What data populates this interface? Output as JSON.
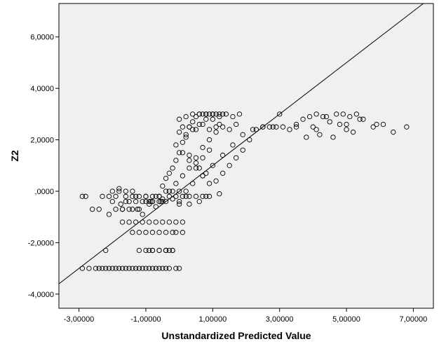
{
  "chart_data": {
    "type": "scatter",
    "title": "",
    "xlabel": "Unstandardized Predicted Value",
    "ylabel": "Z2",
    "xlim": [
      -3.6,
      7.6
    ],
    "ylim": [
      -4.55,
      7.3
    ],
    "x_ticks": [
      -3,
      -1,
      1,
      3,
      5,
      7
    ],
    "x_tick_labels": [
      "-3,00000",
      "-1,00000",
      "1,00000",
      "3,00000",
      "5,00000",
      "7,00000"
    ],
    "y_ticks": [
      -4,
      -2,
      0,
      2,
      4,
      6
    ],
    "y_tick_labels": [
      "-4,0000",
      "-2,0000",
      ",0000",
      "2,0000",
      "4,0000",
      "6,0000"
    ],
    "grid": false,
    "reference_line": {
      "type": "identity",
      "color": "#000000"
    },
    "colors": {
      "plot_background": "#f0f0f0",
      "marker_edge": "#000000",
      "axis": "#000000"
    },
    "series": [
      {
        "marker": "open-circle",
        "x": [
          -2.9,
          -2.8,
          -2.6,
          -2.3,
          -2.1,
          -2.0,
          -1.9,
          -1.8,
          -1.75,
          -1.7,
          -1.6,
          -1.5,
          -1.4,
          -1.3,
          -1.25,
          -1.1,
          -1.0,
          -0.9,
          -0.85,
          -0.8,
          -0.7,
          -0.6,
          -0.55,
          -0.5,
          -2.4,
          -2.1,
          -1.9,
          -1.7,
          -1.6,
          -1.5,
          -1.4,
          -1.3,
          -1.2,
          -1.1,
          -1.0,
          -0.9,
          -0.8,
          -0.7,
          -0.6,
          -0.5,
          -0.4,
          -0.3,
          -0.2,
          -0.1,
          0.0,
          0.1,
          0.2,
          -2.0,
          -1.8,
          -1.6,
          -1.4,
          -1.2,
          -1.0,
          -0.8,
          -0.6,
          -0.4,
          -0.2,
          0.0,
          0.2,
          -1.7,
          -1.5,
          -1.3,
          -1.1,
          -0.9,
          -0.7,
          -0.5,
          -0.3,
          -0.1,
          0.1,
          0.3,
          0.5,
          0.7,
          0.8,
          -1.4,
          -1.2,
          -1.0,
          -0.8,
          -0.6,
          -0.4,
          -0.2,
          -0.6,
          -0.4,
          -0.2,
          -1.0,
          -0.8,
          -0.6,
          -0.4,
          -0.2,
          -0.1,
          0.1,
          -2.2,
          -1.2,
          -0.9,
          -0.8,
          -0.4,
          -0.3,
          -2.9,
          -2.7,
          -2.5,
          -2.4,
          -2.3,
          -2.2,
          -2.1,
          -2.0,
          -1.9,
          -1.8,
          -1.7,
          -1.6,
          -1.5,
          -1.4,
          -1.3,
          -1.2,
          -1.1,
          -1.0,
          -0.9,
          -0.8,
          -0.7,
          -0.6,
          -0.5,
          -0.4,
          -0.3,
          -0.1,
          0.0,
          -0.5,
          -0.4,
          -0.3,
          -0.2,
          -0.1,
          0.0,
          0.1,
          0.2,
          0.3,
          0.4,
          0.5,
          0.6,
          0.7,
          0.8,
          0.9,
          1.0,
          1.1,
          1.2,
          1.3,
          0.0,
          0.2,
          0.4,
          0.6,
          0.8,
          1.0,
          1.2,
          0.3,
          0.5,
          0.7,
          0.9,
          0.6,
          0.8,
          -0.3,
          -0.1,
          0.1,
          0.3,
          0.5,
          0.7,
          0.9,
          1.1,
          1.3,
          1.5,
          1.7,
          -0.1,
          0.1,
          0.3,
          0.5,
          0.7,
          0.9,
          1.1,
          1.3,
          1.5,
          1.7,
          1.9,
          2.1,
          2.3,
          2.5,
          2.7,
          0.0,
          0.2,
          0.4,
          0.6,
          0.8,
          1.0,
          1.2,
          1.4,
          1.6,
          1.8,
          0.1,
          0.3,
          0.5,
          0.7,
          0.9,
          1.1,
          0.0,
          0.3,
          0.6,
          0.9,
          1.2,
          0.4,
          0.7,
          1.0,
          1.3,
          1.6,
          1.9,
          2.2,
          2.5,
          2.8,
          2.9,
          3.1,
          3.3,
          3.5,
          3.7,
          3.9,
          4.1,
          4.3,
          4.5,
          4.7,
          4.9,
          5.1,
          5.3,
          5.5,
          5.9,
          6.1,
          3.0,
          3.5,
          4.0,
          4.2,
          4.4,
          4.8,
          5.0,
          5.2,
          5.4,
          3.8,
          4.1,
          4.6,
          5.0,
          5.8,
          6.4,
          6.8
        ],
        "y": [
          -0.2,
          -0.2,
          -0.7,
          -0.2,
          -0.2,
          -0.4,
          -0.2,
          0.1,
          -0.5,
          -0.7,
          -0.2,
          -0.4,
          -0.2,
          -0.2,
          -0.7,
          -0.4,
          -0.2,
          -0.5,
          -0.4,
          -0.4,
          -0.2,
          -0.2,
          -0.4,
          -0.3,
          -0.7,
          -0.9,
          -0.7,
          -0.7,
          -0.4,
          -0.7,
          -0.7,
          -0.4,
          -0.7,
          -0.9,
          -0.4,
          -0.4,
          -0.4,
          -0.6,
          -0.4,
          -0.4,
          -0.4,
          -0.2,
          -0.3,
          -0.2,
          -0.4,
          -0.2,
          -0.2,
          0.0,
          0.0,
          0.0,
          0.0,
          -0.2,
          -0.2,
          -0.2,
          -0.2,
          0.0,
          0.0,
          0.0,
          0.0,
          -1.2,
          -1.2,
          -1.2,
          -1.2,
          -1.2,
          -1.2,
          -1.2,
          -1.2,
          -1.2,
          -1.2,
          -0.2,
          -0.2,
          -0.2,
          -0.2,
          -1.6,
          -1.6,
          -1.6,
          -1.6,
          -1.6,
          -1.6,
          -1.6,
          -2.3,
          -2.3,
          -2.3,
          -2.3,
          -2.3,
          -2.3,
          -2.3,
          -2.3,
          -1.6,
          -1.6,
          -2.3,
          -2.3,
          -2.3,
          -2.3,
          -2.3,
          -2.3,
          -3.0,
          -3.0,
          -3.0,
          -3.0,
          -3.0,
          -3.0,
          -3.0,
          -3.0,
          -3.0,
          -3.0,
          -3.0,
          -3.0,
          -3.0,
          -3.0,
          -3.0,
          -3.0,
          -3.0,
          -3.0,
          -3.0,
          -3.0,
          -3.0,
          -3.0,
          -3.0,
          -3.0,
          -3.0,
          -3.0,
          -3.0,
          0.2,
          0.5,
          0.7,
          0.9,
          1.2,
          1.5,
          1.9,
          2.2,
          2.5,
          2.7,
          2.9,
          3.0,
          3.0,
          3.0,
          3.0,
          3.0,
          3.0,
          3.0,
          3.0,
          2.3,
          2.1,
          2.4,
          2.6,
          2.8,
          2.8,
          2.6,
          1.4,
          1.1,
          1.3,
          1.6,
          0.9,
          0.7,
          0.0,
          0.3,
          0.6,
          0.9,
          1.3,
          1.7,
          2.0,
          2.3,
          2.5,
          2.4,
          2.6,
          1.8,
          1.5,
          1.2,
          0.9,
          0.6,
          0.3,
          0.4,
          0.7,
          1.0,
          1.3,
          1.6,
          2.0,
          2.4,
          2.5,
          2.5,
          2.8,
          2.9,
          3.0,
          3.0,
          3.0,
          3.0,
          2.9,
          3.0,
          2.9,
          3.0,
          2.5,
          2.5,
          2.4,
          2.6,
          2.4,
          2.5,
          -0.5,
          -0.5,
          -0.4,
          -0.2,
          -0.1,
          0.3,
          0.6,
          1.0,
          1.4,
          1.8,
          2.2,
          2.4,
          2.5,
          2.5,
          2.5,
          2.5,
          2.4,
          2.6,
          2.8,
          2.9,
          3.0,
          2.9,
          2.7,
          3.0,
          3.0,
          2.9,
          3.0,
          2.8,
          2.6,
          2.6,
          3.0,
          2.5,
          2.5,
          2.2,
          2.9,
          2.6,
          2.6,
          2.3,
          2.8,
          2.1,
          2.4,
          2.1,
          2.4,
          2.5,
          2.3,
          2.5
        ]
      }
    ]
  }
}
